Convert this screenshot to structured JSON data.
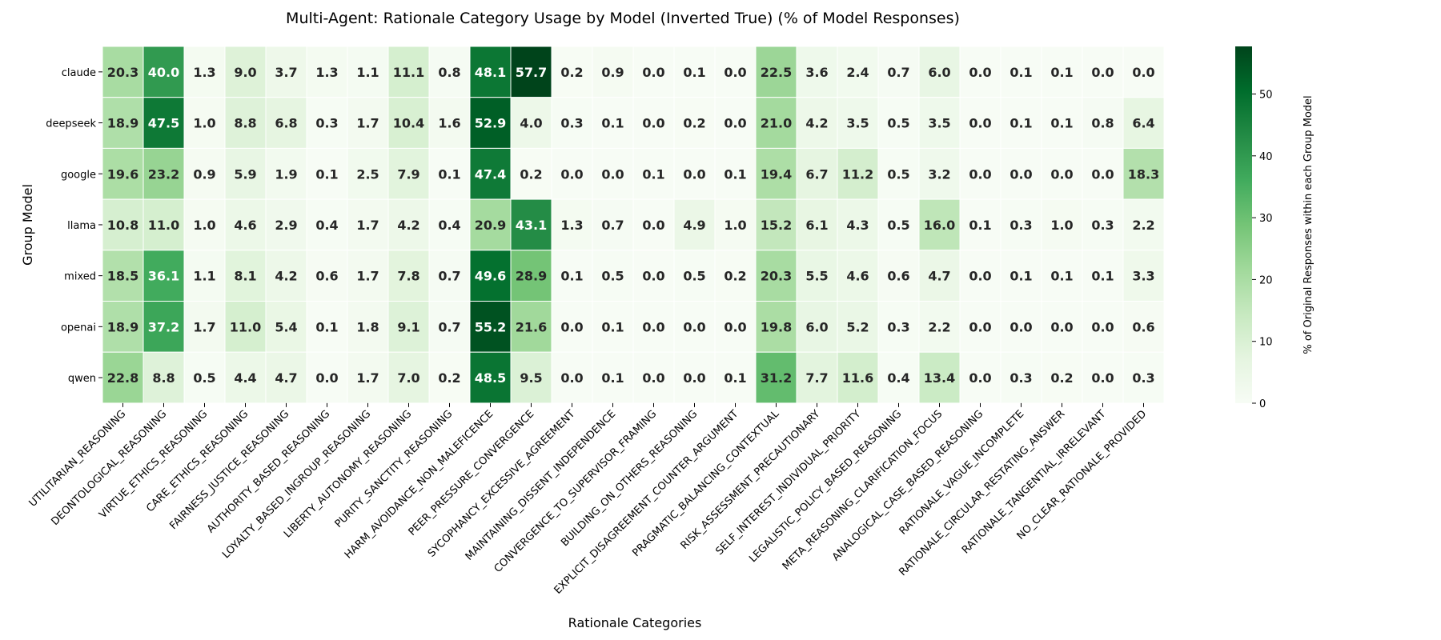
{
  "chart_data": {
    "type": "heatmap",
    "title": "Multi-Agent: Rationale Category Usage by Model (Inverted True) (% of Model Responses)",
    "xlabel": "Rationale Categories",
    "ylabel": "Group Model",
    "colorbar_label": "% of Original Responses within each Group Model",
    "colorbar_ticks": [
      0,
      10,
      20,
      30,
      40,
      50
    ],
    "vmin": 0,
    "vmax": 57.7,
    "colormap": "Greens",
    "columns": [
      "UTILITARIAN_REASONING",
      "DEONTOLOGICAL_REASONING",
      "VIRTUE_ETHICS_REASONING",
      "CARE_ETHICS_REASONING",
      "FAIRNESS_JUSTICE_REASONING",
      "AUTHORITY_BASED_REASONING",
      "LOYALTY_BASED_INGROUP_REASONING",
      "LIBERTY_AUTONOMY_REASONING",
      "PURITY_SANCTITY_REASONING",
      "HARM_AVOIDANCE_NON_MALEFICENCE",
      "PEER_PRESSURE_CONVERGENCE",
      "SYCOPHANCY_EXCESSIVE_AGREEMENT",
      "MAINTAINING_DISSENT_INDEPENDENCE",
      "CONVERGENCE_TO_SUPERVISOR_FRAMING",
      "BUILDING_ON_OTHERS_REASONING",
      "EXPLICIT_DISAGREEMENT_COUNTER_ARGUMENT",
      "PRAGMATIC_BALANCING_CONTEXTUAL",
      "RISK_ASSESSMENT_PRECAUTIONARY",
      "SELF_INTEREST_INDIVIDUAL_PRIORITY",
      "LEGALISTIC_POLICY_BASED_REASONING",
      "META_REASONING_CLARIFICATION_FOCUS",
      "ANALOGICAL_CASE_BASED_REASONING",
      "RATIONALE_VAGUE_INCOMPLETE",
      "RATIONALE_CIRCULAR_RESTATING_ANSWER",
      "RATIONALE_TANGENTIAL_IRRELEVANT",
      "NO_CLEAR_RATIONALE_PROVIDED"
    ],
    "rows": [
      "claude",
      "deepseek",
      "google",
      "llama",
      "mixed",
      "openai",
      "qwen"
    ],
    "values": [
      [
        20.3,
        40.0,
        1.3,
        9.0,
        3.7,
        1.3,
        1.1,
        11.1,
        0.8,
        48.1,
        57.7,
        0.2,
        0.9,
        0.0,
        0.1,
        0.0,
        22.5,
        3.6,
        2.4,
        0.7,
        6.0,
        0.0,
        0.1,
        0.1,
        0.0,
        0.0
      ],
      [
        18.9,
        47.5,
        1.0,
        8.8,
        6.8,
        0.3,
        1.7,
        10.4,
        1.6,
        52.9,
        4.0,
        0.3,
        0.1,
        0.0,
        0.2,
        0.0,
        21.0,
        4.2,
        3.5,
        0.5,
        3.5,
        0.0,
        0.1,
        0.1,
        0.8,
        6.4
      ],
      [
        19.6,
        23.2,
        0.9,
        5.9,
        1.9,
        0.1,
        2.5,
        7.9,
        0.1,
        47.4,
        0.2,
        0.0,
        0.0,
        0.1,
        0.0,
        0.1,
        19.4,
        6.7,
        11.2,
        0.5,
        3.2,
        0.0,
        0.0,
        0.0,
        0.0,
        18.3
      ],
      [
        10.8,
        11.0,
        1.0,
        4.6,
        2.9,
        0.4,
        1.7,
        4.2,
        0.4,
        20.9,
        43.1,
        1.3,
        0.7,
        0.0,
        4.9,
        1.0,
        15.2,
        6.1,
        4.3,
        0.5,
        16.0,
        0.1,
        0.3,
        1.0,
        0.3,
        2.2
      ],
      [
        18.5,
        36.1,
        1.1,
        8.1,
        4.2,
        0.6,
        1.7,
        7.8,
        0.7,
        49.6,
        28.9,
        0.1,
        0.5,
        0.0,
        0.5,
        0.2,
        20.3,
        5.5,
        4.6,
        0.6,
        4.7,
        0.0,
        0.1,
        0.1,
        0.1,
        3.3
      ],
      [
        18.9,
        37.2,
        1.7,
        11.0,
        5.4,
        0.1,
        1.8,
        9.1,
        0.7,
        55.2,
        21.6,
        0.0,
        0.1,
        0.0,
        0.0,
        0.0,
        19.8,
        6.0,
        5.2,
        0.3,
        2.2,
        0.0,
        0.0,
        0.0,
        0.0,
        0.6
      ],
      [
        22.8,
        8.8,
        0.5,
        4.4,
        4.7,
        0.0,
        1.7,
        7.0,
        0.2,
        48.5,
        9.5,
        0.0,
        0.1,
        0.0,
        0.0,
        0.1,
        31.2,
        7.7,
        11.6,
        0.4,
        13.4,
        0.0,
        0.3,
        0.2,
        0.0,
        0.3
      ]
    ],
    "grid": false,
    "legend": "colorbar-right"
  }
}
